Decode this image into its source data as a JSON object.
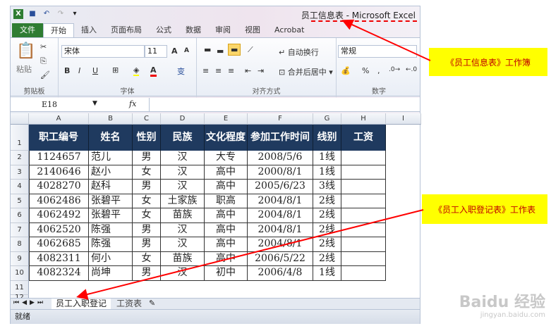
{
  "window": {
    "title": "员工信息表 - Microsoft Excel"
  },
  "ribbon_tabs": [
    "文件",
    "开始",
    "插入",
    "页面布局",
    "公式",
    "数据",
    "审阅",
    "视图",
    "Acrobat"
  ],
  "ribbon": {
    "clipboard": {
      "label": "剪贴板",
      "paste": "粘贴"
    },
    "font": {
      "label": "字体",
      "name": "宋体",
      "size": "11",
      "grow": "A",
      "shrink": "A",
      "bold": "B",
      "italic": "I",
      "underline": "U",
      "font_color": "A",
      "phonetic": "变"
    },
    "alignment": {
      "label": "对齐方式",
      "wrap": "自动换行",
      "merge": "合并后居中"
    },
    "number": {
      "label": "数字",
      "format": "常规",
      "percent": "%",
      "comma": ","
    }
  },
  "formula_bar": {
    "name_box": "E18",
    "fx": "fx",
    "value": ""
  },
  "columns": [
    "A",
    "B",
    "C",
    "D",
    "E",
    "F",
    "G",
    "H",
    "I"
  ],
  "rows": [
    "1",
    "2",
    "3",
    "4",
    "5",
    "6",
    "7",
    "8",
    "9",
    "10",
    "11",
    "12"
  ],
  "table": {
    "headers": [
      "职工编号",
      "姓名",
      "性别",
      "民族",
      "文化程度",
      "参加工作时间",
      "线别",
      "工资"
    ],
    "data": [
      [
        "1124657",
        "范儿",
        "男",
        "汉",
        "大专",
        "2008/5/6",
        "1线",
        ""
      ],
      [
        "2140646",
        "赵小",
        "女",
        "汉",
        "高中",
        "2000/8/1",
        "1线",
        ""
      ],
      [
        "4028270",
        "赵科",
        "男",
        "汉",
        "高中",
        "2005/6/23",
        "3线",
        ""
      ],
      [
        "4062486",
        "张碧平",
        "女",
        "土家族",
        "职高",
        "2004/8/1",
        "2线",
        ""
      ],
      [
        "4062492",
        "张碧平",
        "女",
        "苗族",
        "高中",
        "2004/8/1",
        "2线",
        ""
      ],
      [
        "4062520",
        "陈强",
        "男",
        "汉",
        "高中",
        "2004/8/1",
        "2线",
        ""
      ],
      [
        "4062685",
        "陈强",
        "男",
        "汉",
        "高中",
        "2004/8/1",
        "2线",
        ""
      ],
      [
        "4082311",
        "何小",
        "女",
        "苗族",
        "高中",
        "2006/5/22",
        "2线",
        ""
      ],
      [
        "4082324",
        "尚坤",
        "男",
        "汉",
        "初中",
        "2006/4/8",
        "1线",
        ""
      ]
    ]
  },
  "sheet_tabs": [
    "员工入职登记",
    "工资表"
  ],
  "status": "就绪",
  "annotations": {
    "workbook": "《员工信息表》工作簿",
    "worksheet": "《员工入职登记表》工作表",
    "color": "#ff0000",
    "bg": "#ffff00"
  },
  "watermark": {
    "text": "Bai du 经验",
    "url": "jingyan.baidu.com"
  }
}
